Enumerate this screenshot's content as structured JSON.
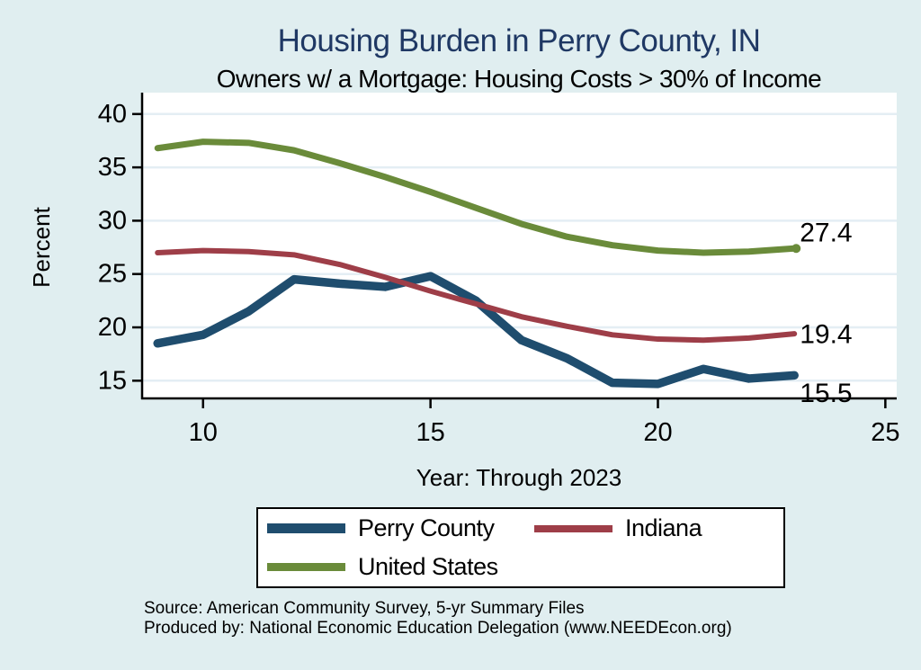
{
  "page": {
    "colors": {
      "background": "#e0eef0",
      "title": "#1f3864",
      "plot_background": "#ffffff",
      "gridline": "#e4eef4",
      "axis": "#000000"
    }
  },
  "header": {
    "title": "Housing Burden in Perry County, IN",
    "subtitle": "Owners w/ a Mortgage: Housing Costs > 30% of Income"
  },
  "chart_data": {
    "type": "line",
    "title": "Housing Burden in Perry County, IN",
    "subtitle": "Owners w/ a Mortgage: Housing Costs > 30% of Income",
    "xlabel": "Year: Through 2023",
    "ylabel": "Percent",
    "x": [
      9,
      10,
      11,
      12,
      13,
      14,
      15,
      16,
      17,
      18,
      19,
      20,
      21,
      22,
      23
    ],
    "x_ticks": [
      10,
      15,
      20,
      25
    ],
    "y_ticks": [
      15,
      20,
      25,
      30,
      35,
      40
    ],
    "xlim": [
      8.64,
      25.25
    ],
    "ylim": [
      13.34,
      41.67
    ],
    "grid": true,
    "legend_position": "bottom",
    "series": [
      {
        "name": "Perry County",
        "color": "#1f4d6e",
        "line_width": 9.5,
        "values": [
          18.5,
          19.3,
          21.5,
          24.5,
          24.1,
          23.8,
          24.8,
          22.5,
          18.8,
          17.1,
          14.8,
          14.7,
          16.1,
          15.2,
          15.5
        ],
        "end_label": "15.5",
        "end_label_dy": 20,
        "end_dot": false
      },
      {
        "name": "Indiana",
        "color": "#9e3e48",
        "line_width": 6,
        "values": [
          27.0,
          27.2,
          27.1,
          26.8,
          25.9,
          24.7,
          23.4,
          22.2,
          21.0,
          20.1,
          19.3,
          18.9,
          18.8,
          19.0,
          19.4
        ],
        "end_label": "19.4",
        "end_label_dy": 1,
        "end_dot": false
      },
      {
        "name": "United States",
        "color": "#6a8b3a",
        "line_width": 7,
        "values": [
          36.8,
          37.4,
          37.3,
          36.6,
          35.4,
          34.1,
          32.7,
          31.2,
          29.7,
          28.5,
          27.7,
          27.2,
          27.0,
          27.1,
          27.4
        ],
        "end_label": "27.4",
        "end_label_dy": -17,
        "end_dot": true
      }
    ]
  },
  "legend": {
    "rows": [
      [
        "Perry County",
        "Indiana"
      ],
      [
        "United States"
      ]
    ]
  },
  "footer": {
    "source_line1": "Source: American Community Survey, 5-yr Summary Files",
    "source_line2": "Produced by: National Economic Education Delegation (www.NEEDEcon.org)"
  }
}
